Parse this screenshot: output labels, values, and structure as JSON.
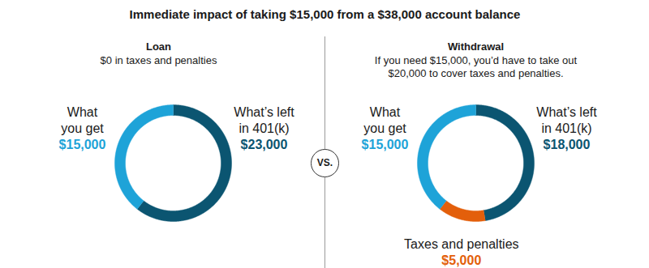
{
  "title": "Immediate impact of taking $15,000 from a $38,000 account balance",
  "separator_label": "VS.",
  "chart_data": [
    {
      "type": "donut",
      "title": "Loan",
      "subtitle": "$0 in taxes and penalties",
      "categories": [
        "What’s left in 401(k)",
        "What you get"
      ],
      "values": [
        23000,
        15000
      ],
      "value_labels": [
        "$23,000",
        "$15,000"
      ],
      "colors": [
        "#0b5571",
        "#1ea3d8"
      ],
      "data_labels": true
    },
    {
      "type": "donut",
      "title": "Withdrawal",
      "subtitle": "If you need $15,000, you’d have to take out $20,000 to cover taxes and penalties.",
      "categories": [
        "What’s left in 401(k)",
        "Taxes and penalties",
        "What you get"
      ],
      "values": [
        18000,
        5000,
        15000
      ],
      "value_labels": [
        "$18,000",
        "$5,000",
        "$15,000"
      ],
      "colors": [
        "#0b5571",
        "#e35f0b",
        "#1ea3d8"
      ],
      "data_labels": true
    }
  ]
}
